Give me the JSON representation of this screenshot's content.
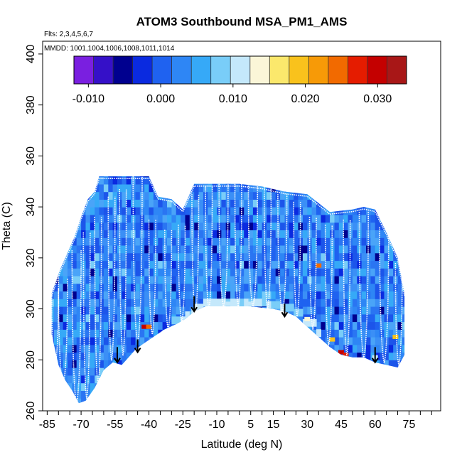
{
  "chart_data": {
    "type": "heatmap",
    "title": "ATOM3 Southbound MSA_PM1_AMS",
    "flights_note": "Flts: 2,3,4,5,6,7",
    "dates_note": "MMDD: 1001,1004,1006,1008,1011,1014",
    "xlabel": "Latitude (deg N)",
    "ylabel": "Theta (C)",
    "xlim": [
      -87,
      89
    ],
    "ylim": [
      260,
      405
    ],
    "x_ticks": [
      -85,
      -70,
      -55,
      -40,
      -25,
      -10,
      5,
      15,
      30,
      45,
      60,
      75
    ],
    "x_tick_labels": [
      "-85",
      "-70",
      "-55",
      "-40",
      "-25",
      "-10",
      "5",
      "15",
      "30",
      "45",
      "60",
      "75"
    ],
    "y_ticks": [
      260,
      280,
      300,
      320,
      340,
      360,
      380,
      400
    ],
    "y_tick_labels": [
      "260",
      "280",
      "300",
      "320",
      "340",
      "360",
      "380",
      "400"
    ],
    "colorbar": {
      "range": [
        -0.012,
        0.034
      ],
      "ticks": [
        -0.01,
        0.0,
        0.01,
        0.02,
        0.03
      ],
      "tick_labels": [
        "-0.010",
        "0.000",
        "0.010",
        "0.020",
        "0.030"
      ],
      "colors": [
        "#7a1fe0",
        "#3510c8",
        "#00008f",
        "#0a2ae0",
        "#1f62f0",
        "#2e86f5",
        "#36a9f7",
        "#79cdf8",
        "#c4e8fb",
        "#fbf6d8",
        "#fbe86c",
        "#f9c21c",
        "#f79a07",
        "#f26a00",
        "#e51c00",
        "#c40000",
        "#a81717"
      ]
    },
    "coverage_upper_theta": [
      [
        -83,
        306
      ],
      [
        -79,
        316
      ],
      [
        -76,
        322
      ],
      [
        -73,
        328
      ],
      [
        -70,
        336
      ],
      [
        -67,
        343
      ],
      [
        -64,
        346
      ],
      [
        -62,
        352
      ],
      [
        -40,
        352
      ],
      [
        -36,
        344
      ],
      [
        -30,
        343
      ],
      [
        -25,
        339
      ],
      [
        -20,
        349
      ],
      [
        -10,
        349
      ],
      [
        0,
        349
      ],
      [
        10,
        348
      ],
      [
        20,
        346
      ],
      [
        30,
        345
      ],
      [
        40,
        338
      ],
      [
        50,
        339
      ],
      [
        55,
        340
      ],
      [
        60,
        339
      ],
      [
        65,
        330
      ],
      [
        70,
        320
      ],
      [
        73,
        306
      ]
    ],
    "coverage_lower_theta": [
      [
        -83,
        290
      ],
      [
        -80,
        278
      ],
      [
        -77,
        272
      ],
      [
        -74,
        268
      ],
      [
        -71,
        263
      ],
      [
        -68,
        264
      ],
      [
        -64,
        269
      ],
      [
        -60,
        276
      ],
      [
        -56,
        279
      ],
      [
        -52,
        278
      ],
      [
        -49,
        281
      ],
      [
        -46,
        284
      ],
      [
        -43,
        286
      ],
      [
        -38,
        289
      ],
      [
        -33,
        292
      ],
      [
        -28,
        294
      ],
      [
        -24,
        296
      ],
      [
        -20,
        299
      ],
      [
        -15,
        301
      ],
      [
        -5,
        301
      ],
      [
        5,
        301
      ],
      [
        15,
        300
      ],
      [
        20,
        299
      ],
      [
        25,
        297
      ],
      [
        30,
        293
      ],
      [
        35,
        289
      ],
      [
        40,
        285
      ],
      [
        45,
        282
      ],
      [
        50,
        281
      ],
      [
        55,
        281
      ],
      [
        60,
        279
      ],
      [
        65,
        278
      ],
      [
        70,
        277
      ],
      [
        73,
        282
      ]
    ],
    "highlights": [
      {
        "lat": -42,
        "theta": 293,
        "value": 0.029
      },
      {
        "lat": -40,
        "theta": 293,
        "value": 0.024
      },
      {
        "lat": 45,
        "theta": 283,
        "value": 0.03
      },
      {
        "lat": 47,
        "theta": 282,
        "value": 0.026
      },
      {
        "lat": 41,
        "theta": 288,
        "value": 0.02
      },
      {
        "lat": 35,
        "theta": 317,
        "value": 0.025
      },
      {
        "lat": 69,
        "theta": 289,
        "value": 0.02
      },
      {
        "lat": 60,
        "theta": 281,
        "value": 0.012
      },
      {
        "lat": -5,
        "theta": 302,
        "value": 0.012
      },
      {
        "lat": 5,
        "theta": 302,
        "value": 0.011
      },
      {
        "lat": -20,
        "theta": 299,
        "value": 0.011
      },
      {
        "lat": 30,
        "theta": 296,
        "value": 0.015
      }
    ],
    "profiles": [
      {
        "lat_a": -83,
        "lat_b": -80,
        "theta_bottom": 278,
        "theta_top": 308
      },
      {
        "lat_a": -80,
        "lat_b": -76,
        "theta_bottom": 270,
        "theta_top": 312
      },
      {
        "lat_a": -74,
        "lat_b": -70,
        "theta_bottom": 263,
        "theta_top": 323
      },
      {
        "lat_a": -69,
        "lat_b": -66,
        "theta_bottom": 265,
        "theta_top": 330
      },
      {
        "lat_a": -64,
        "lat_b": -61,
        "theta_bottom": 270,
        "theta_top": 336
      },
      {
        "lat_a": -58,
        "lat_b": -55,
        "theta_bottom": 280,
        "theta_top": 344
      },
      {
        "lat_a": -53,
        "lat_b": -50,
        "theta_bottom": 282,
        "theta_top": 347
      },
      {
        "lat_a": -47,
        "lat_b": -43,
        "theta_bottom": 287,
        "theta_top": 352
      },
      {
        "lat_a": -40,
        "lat_b": -37,
        "theta_bottom": 290,
        "theta_top": 335
      },
      {
        "lat_a": -33,
        "lat_b": -30,
        "theta_bottom": 292,
        "theta_top": 331
      },
      {
        "lat_a": -27,
        "lat_b": -24,
        "theta_bottom": 295,
        "theta_top": 333
      },
      {
        "lat_a": -21,
        "lat_b": -18,
        "theta_bottom": 298,
        "theta_top": 345
      },
      {
        "lat_a": -15,
        "lat_b": -12,
        "theta_bottom": 300,
        "theta_top": 348
      },
      {
        "lat_a": -9,
        "lat_b": -5,
        "theta_bottom": 301,
        "theta_top": 349
      },
      {
        "lat_a": -2,
        "lat_b": 1,
        "theta_bottom": 301,
        "theta_top": 349
      },
      {
        "lat_a": 4,
        "lat_b": 8,
        "theta_bottom": 301,
        "theta_top": 349
      },
      {
        "lat_a": 11,
        "lat_b": 14,
        "theta_bottom": 300,
        "theta_top": 348
      },
      {
        "lat_a": 17,
        "lat_b": 21,
        "theta_bottom": 299,
        "theta_top": 345
      },
      {
        "lat_a": 24,
        "lat_b": 27,
        "theta_bottom": 297,
        "theta_top": 342
      },
      {
        "lat_a": 31,
        "lat_b": 34,
        "theta_bottom": 292,
        "theta_top": 336
      },
      {
        "lat_a": 38,
        "lat_b": 41,
        "theta_bottom": 286,
        "theta_top": 333
      },
      {
        "lat_a": 46,
        "lat_b": 49,
        "theta_bottom": 282,
        "theta_top": 335
      },
      {
        "lat_a": 53,
        "lat_b": 57,
        "theta_bottom": 281,
        "theta_top": 338
      },
      {
        "lat_a": 62,
        "lat_b": 66,
        "theta_bottom": 279,
        "theta_top": 332
      },
      {
        "lat_a": 69,
        "lat_b": 72,
        "theta_bottom": 278,
        "theta_top": 318
      }
    ],
    "arrows": [
      {
        "lat": -54,
        "theta_top": 285,
        "theta_tip": 279
      },
      {
        "lat": -45,
        "theta_top": 288,
        "theta_tip": 283
      },
      {
        "lat": -20,
        "theta_top": 305,
        "theta_tip": 299
      },
      {
        "lat": 20,
        "theta_top": 302,
        "theta_tip": 297
      },
      {
        "lat": 60,
        "theta_top": 285,
        "theta_tip": 279
      }
    ]
  }
}
